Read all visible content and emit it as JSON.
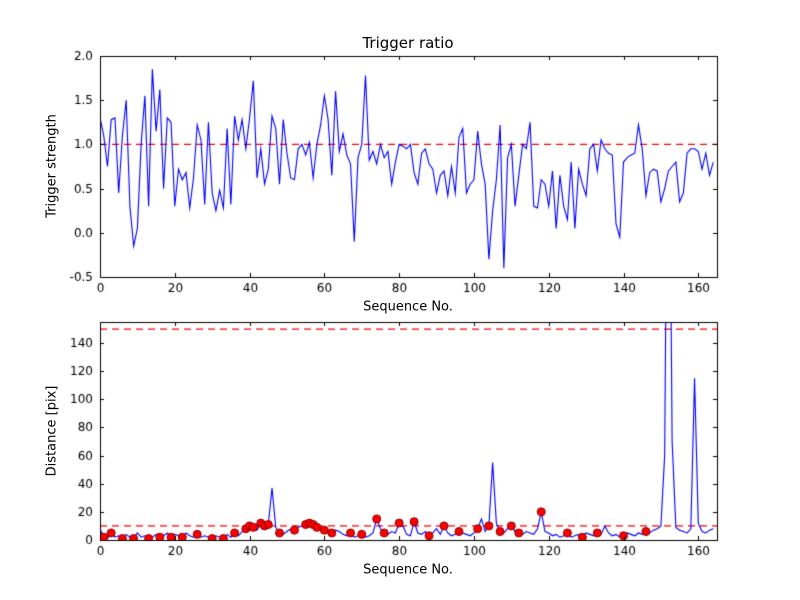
{
  "figure": {
    "background": "#ffffff",
    "line_color": "#0000ff",
    "dashed_color": "#ff0000",
    "marker_fill": "#ff0000",
    "marker_edge": "#880000",
    "axes_color": "#000000"
  },
  "chart_data": [
    {
      "type": "line",
      "title": "Trigger ratio",
      "xlabel": "Sequence No.",
      "ylabel": "Trigger strength",
      "xlim": [
        0,
        165
      ],
      "ylim": [
        -0.5,
        2.0
      ],
      "xticks": [
        "0",
        "20",
        "40",
        "60",
        "80",
        "100",
        "120",
        "140",
        "160"
      ],
      "yticks": [
        "-0.5",
        "0.0",
        "0.5",
        "1.0",
        "1.5",
        "2.0"
      ],
      "grid": false,
      "legend": "none",
      "hlines": [
        1.0
      ],
      "series": [
        {
          "name": "trigger-strength",
          "values": [
            1.3,
            1.1,
            0.75,
            1.28,
            1.3,
            0.45,
            1.1,
            1.5,
            0.3,
            -0.15,
            0.05,
            1.0,
            1.55,
            0.3,
            1.85,
            1.15,
            1.62,
            0.5,
            1.3,
            1.25,
            0.3,
            0.72,
            0.6,
            0.68,
            0.28,
            0.62,
            1.22,
            1.05,
            0.32,
            1.25,
            0.45,
            0.25,
            0.48,
            0.28,
            1.18,
            0.32,
            1.32,
            1.05,
            1.28,
            0.95,
            1.3,
            1.72,
            0.62,
            0.95,
            0.55,
            0.72,
            1.32,
            1.18,
            0.55,
            1.28,
            0.9,
            0.62,
            0.6,
            0.95,
            1.0,
            0.88,
            1.02,
            0.62,
            1.0,
            1.22,
            1.55,
            1.28,
            0.65,
            1.6,
            0.92,
            1.12,
            0.88,
            0.78,
            -0.1,
            0.85,
            1.0,
            1.78,
            0.82,
            0.92,
            0.78,
            1.0,
            0.85,
            0.92,
            0.55,
            0.8,
            1.0,
            0.98,
            0.95,
            1.0,
            0.68,
            0.55,
            0.9,
            0.95,
            0.78,
            0.72,
            0.45,
            0.65,
            0.7,
            0.42,
            0.75,
            0.45,
            1.08,
            1.18,
            0.45,
            0.55,
            0.6,
            1.15,
            0.78,
            0.55,
            -0.3,
            0.25,
            0.6,
            1.22,
            -0.4,
            0.85,
            1.0,
            0.3,
            0.65,
            1.0,
            0.95,
            1.25,
            0.3,
            0.28,
            0.6,
            0.55,
            0.3,
            0.7,
            0.05,
            0.65,
            0.3,
            0.15,
            0.8,
            0.05,
            0.72,
            0.55,
            0.42,
            0.95,
            1.0,
            0.7,
            1.05,
            0.95,
            0.9,
            0.88,
            0.1,
            -0.05,
            0.8,
            0.85,
            0.88,
            0.9,
            1.22,
            0.95,
            0.42,
            0.68,
            0.72,
            0.7,
            0.35,
            0.5,
            0.7,
            0.75,
            0.8,
            0.35,
            0.45,
            0.9,
            0.95,
            0.95,
            0.92,
            0.72,
            0.9,
            0.65,
            0.8
          ]
        }
      ]
    },
    {
      "type": "line",
      "title": "",
      "xlabel": "Sequence No.",
      "ylabel": "Distance [pix]",
      "xlim": [
        0,
        165
      ],
      "ylim": [
        0,
        155
      ],
      "xticks": [
        "0",
        "20",
        "40",
        "60",
        "80",
        "100",
        "120",
        "140",
        "160"
      ],
      "yticks": [
        "0",
        "20",
        "40",
        "60",
        "80",
        "100",
        "120",
        "140"
      ],
      "grid": false,
      "legend": "none",
      "hlines": [
        150,
        10
      ],
      "series": [
        {
          "name": "distance",
          "values": [
            8,
            2,
            1,
            5,
            2,
            3,
            1,
            4,
            2,
            1,
            5,
            2,
            3,
            1,
            2,
            4,
            2,
            3,
            5,
            2,
            4,
            3,
            2,
            5,
            3,
            2,
            4,
            2,
            3,
            2,
            1,
            3,
            2,
            1,
            4,
            2,
            5,
            3,
            6,
            8,
            10,
            9,
            7,
            12,
            10,
            11,
            37,
            9,
            5,
            4,
            6,
            8,
            7,
            9,
            10,
            11,
            12,
            11,
            9,
            8,
            7,
            6,
            5,
            7,
            6,
            4,
            3,
            5,
            2,
            3,
            4,
            2,
            3,
            5,
            15,
            8,
            5,
            4,
            6,
            5,
            12,
            10,
            4,
            3,
            13,
            5,
            4,
            6,
            3,
            5,
            8,
            4,
            10,
            5,
            3,
            4,
            6,
            5,
            4,
            3,
            5,
            8,
            15,
            6,
            10,
            55,
            12,
            6,
            5,
            8,
            10,
            6,
            5,
            4,
            6,
            5,
            4,
            8,
            20,
            6,
            5,
            3,
            4,
            2,
            3,
            5,
            2,
            3,
            4,
            2,
            5,
            4,
            3,
            5,
            4,
            10,
            5,
            3,
            4,
            2,
            3,
            5,
            4,
            3,
            5,
            4,
            6,
            5,
            7,
            8,
            10,
            60,
            400,
            70,
            9,
            7,
            6,
            5,
            8,
            115,
            12,
            6,
            5,
            7,
            8
          ]
        }
      ],
      "marker_x": [
        1,
        3,
        6,
        9,
        13,
        16,
        19,
        22,
        26,
        30,
        33,
        36,
        39,
        40,
        41,
        43,
        44,
        45,
        48,
        52,
        55,
        56,
        57,
        58,
        60,
        62,
        67,
        70,
        74,
        76,
        80,
        84,
        88,
        92,
        96,
        101,
        104,
        107,
        110,
        112,
        118,
        125,
        129,
        133,
        140,
        146
      ]
    }
  ]
}
